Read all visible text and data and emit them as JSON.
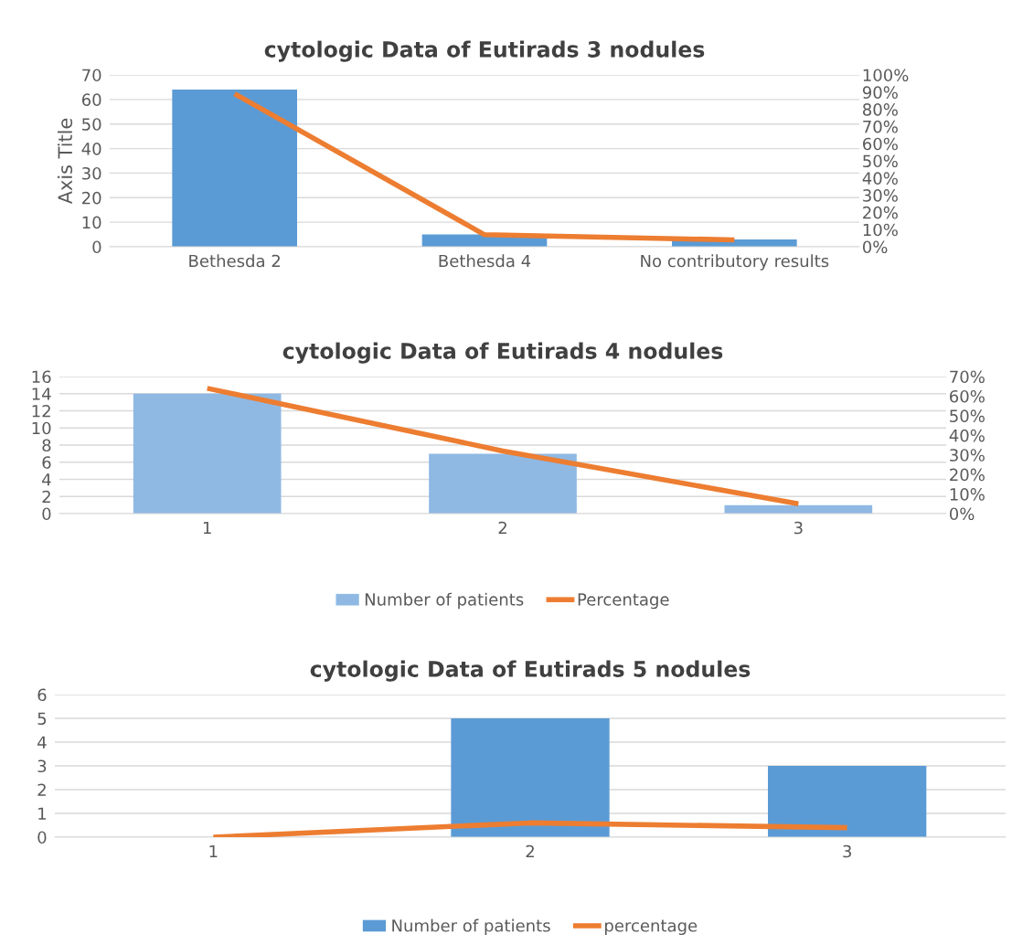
{
  "chart_data": [
    {
      "type": "bar",
      "title": "cytologic Data of Eutirads 3 nodules",
      "ylabel": "Axis Title",
      "categories": [
        "Bethesda 2",
        "Bethesda 4",
        "No contributory results"
      ],
      "series": [
        {
          "color": "#5b9bd5",
          "values": [
            64,
            5,
            3
          ]
        },
        {
          "type": "line",
          "axis": "y2",
          "color": "#ed7d31",
          "values": [
            89,
            7,
            4
          ]
        }
      ],
      "ylim": [
        0,
        70
      ],
      "yticks": [
        0,
        10,
        20,
        30,
        40,
        50,
        60,
        70
      ],
      "y2lim": [
        0,
        100
      ],
      "y2ticks": [
        {
          "value": 0,
          "label": "0%"
        },
        {
          "value": 10,
          "label": "10%"
        },
        {
          "value": 20,
          "label": "20%"
        },
        {
          "value": 30,
          "label": "30%"
        },
        {
          "value": 40,
          "label": "40%"
        },
        {
          "value": 50,
          "label": "50%"
        },
        {
          "value": 60,
          "label": "60%"
        },
        {
          "value": 70,
          "label": "70%"
        },
        {
          "value": 80,
          "label": "80%"
        },
        {
          "value": 90,
          "label": "90%"
        },
        {
          "value": 100,
          "label": "100%"
        }
      ],
      "grid": "y",
      "legend": false
    },
    {
      "type": "bar",
      "title": "cytologic Data of Eutirads 4 nodules",
      "categories": [
        "1",
        "2",
        "3"
      ],
      "series": [
        {
          "name": "Number of patients",
          "color": "#8fb9e3",
          "values": [
            14,
            7,
            1
          ]
        },
        {
          "type": "line",
          "name": "Percentage",
          "axis": "y2",
          "color": "#ed7d31",
          "values": [
            64,
            32,
            5
          ]
        }
      ],
      "ylim": [
        0,
        16
      ],
      "yticks": [
        0,
        2,
        4,
        6,
        8,
        10,
        12,
        14,
        16
      ],
      "y2lim": [
        0,
        70
      ],
      "y2ticks": [
        {
          "value": 0,
          "label": "0%"
        },
        {
          "value": 10,
          "label": "10%"
        },
        {
          "value": 20,
          "label": "20%"
        },
        {
          "value": 30,
          "label": "30%"
        },
        {
          "value": 40,
          "label": "40%"
        },
        {
          "value": 50,
          "label": "50%"
        },
        {
          "value": 60,
          "label": "60%"
        },
        {
          "value": 70,
          "label": "70%"
        }
      ],
      "grid": "y",
      "legend": "bottom"
    },
    {
      "type": "bar",
      "title": "cytologic Data of Eutirads 5 nodules",
      "categories": [
        "1",
        "2",
        "3"
      ],
      "series": [
        {
          "name": "Number of patients",
          "color": "#5b9bd5",
          "values": [
            0,
            5,
            3
          ]
        },
        {
          "type": "line",
          "name": "percentage",
          "color": "#ed7d31",
          "values": [
            0,
            0.6,
            0.4
          ]
        }
      ],
      "ylim": [
        0,
        6
      ],
      "yticks": [
        0,
        1,
        2,
        3,
        4,
        5,
        6
      ],
      "grid": "y",
      "legend": "bottom"
    }
  ]
}
